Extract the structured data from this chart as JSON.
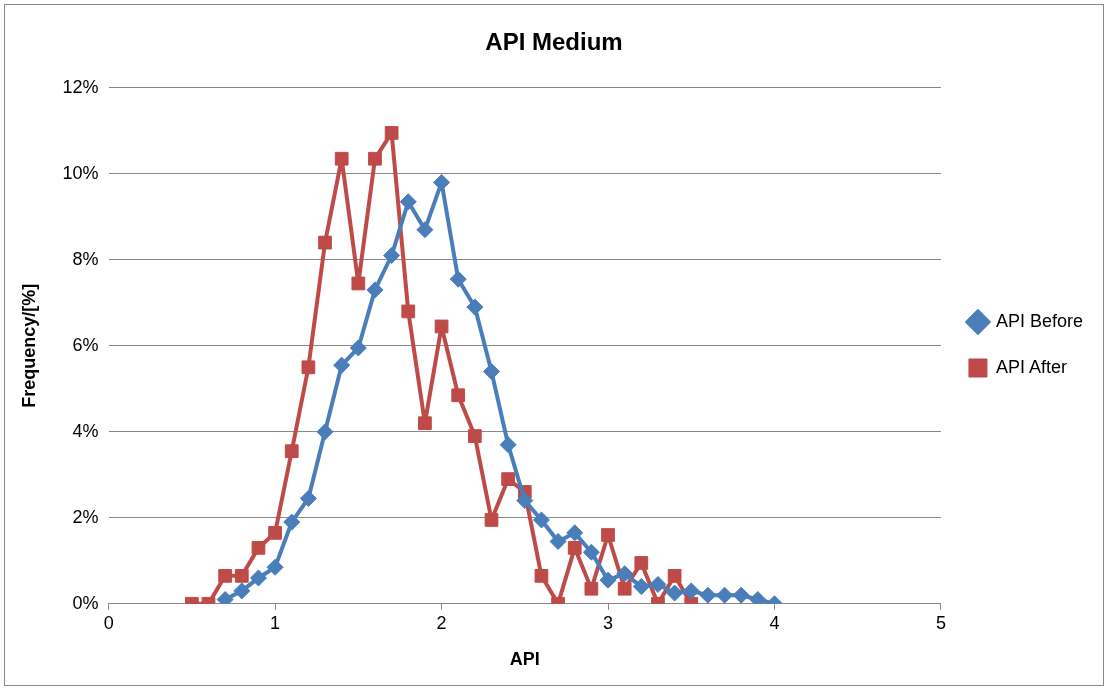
{
  "chart_data": {
    "type": "line",
    "title": "API Medium",
    "xlabel": "API",
    "ylabel": "Frequency/[%]",
    "xlim": [
      0,
      5
    ],
    "xticks": [
      0,
      1,
      2,
      3,
      4,
      5
    ],
    "ylim": [
      0,
      12
    ],
    "yticks": [
      {
        "value": 0,
        "label": "0%"
      },
      {
        "value": 2,
        "label": "2%"
      },
      {
        "value": 4,
        "label": "4%"
      },
      {
        "value": 6,
        "label": "6%"
      },
      {
        "value": 8,
        "label": "8%"
      },
      {
        "value": 10,
        "label": "10%"
      },
      {
        "value": 12,
        "label": "12%"
      }
    ],
    "grid": "y",
    "legend": "right",
    "series": [
      {
        "name": "API Before",
        "color": "#4a7ebb",
        "marker": "diamond",
        "x": [
          0.7,
          0.8,
          0.9,
          1.0,
          1.1,
          1.2,
          1.3,
          1.4,
          1.5,
          1.6,
          1.7,
          1.8,
          1.9,
          2.0,
          2.1,
          2.2,
          2.3,
          2.4,
          2.5,
          2.6,
          2.7,
          2.8,
          2.9,
          3.0,
          3.1,
          3.2,
          3.3,
          3.4,
          3.5,
          3.6,
          3.7,
          3.8,
          3.9,
          4.0
        ],
        "values": [
          0.1,
          0.3,
          0.6,
          0.85,
          1.9,
          2.45,
          4.0,
          5.55,
          5.95,
          7.3,
          8.1,
          9.35,
          8.7,
          9.8,
          7.55,
          6.9,
          5.4,
          3.7,
          2.4,
          1.95,
          1.45,
          1.65,
          1.2,
          0.55,
          0.7,
          0.4,
          0.45,
          0.25,
          0.3,
          0.2,
          0.2,
          0.2,
          0.1,
          0.0
        ]
      },
      {
        "name": "API After",
        "color": "#be4b48",
        "marker": "square",
        "x": [
          0.5,
          0.6,
          0.7,
          0.8,
          0.9,
          1.0,
          1.1,
          1.2,
          1.3,
          1.4,
          1.5,
          1.6,
          1.7,
          1.8,
          1.9,
          2.0,
          2.1,
          2.2,
          2.3,
          2.4,
          2.5,
          2.6,
          2.7,
          2.8,
          2.9,
          3.0,
          3.1,
          3.2,
          3.3,
          3.4,
          3.5
        ],
        "values": [
          0,
          0,
          0.65,
          0.65,
          1.3,
          1.65,
          3.55,
          5.5,
          8.4,
          10.35,
          7.45,
          10.35,
          10.95,
          6.8,
          4.2,
          6.45,
          4.85,
          3.9,
          1.95,
          2.9,
          2.6,
          0.65,
          0,
          1.3,
          0.35,
          1.6,
          0.35,
          0.95,
          0,
          0.65,
          0
        ]
      }
    ]
  }
}
